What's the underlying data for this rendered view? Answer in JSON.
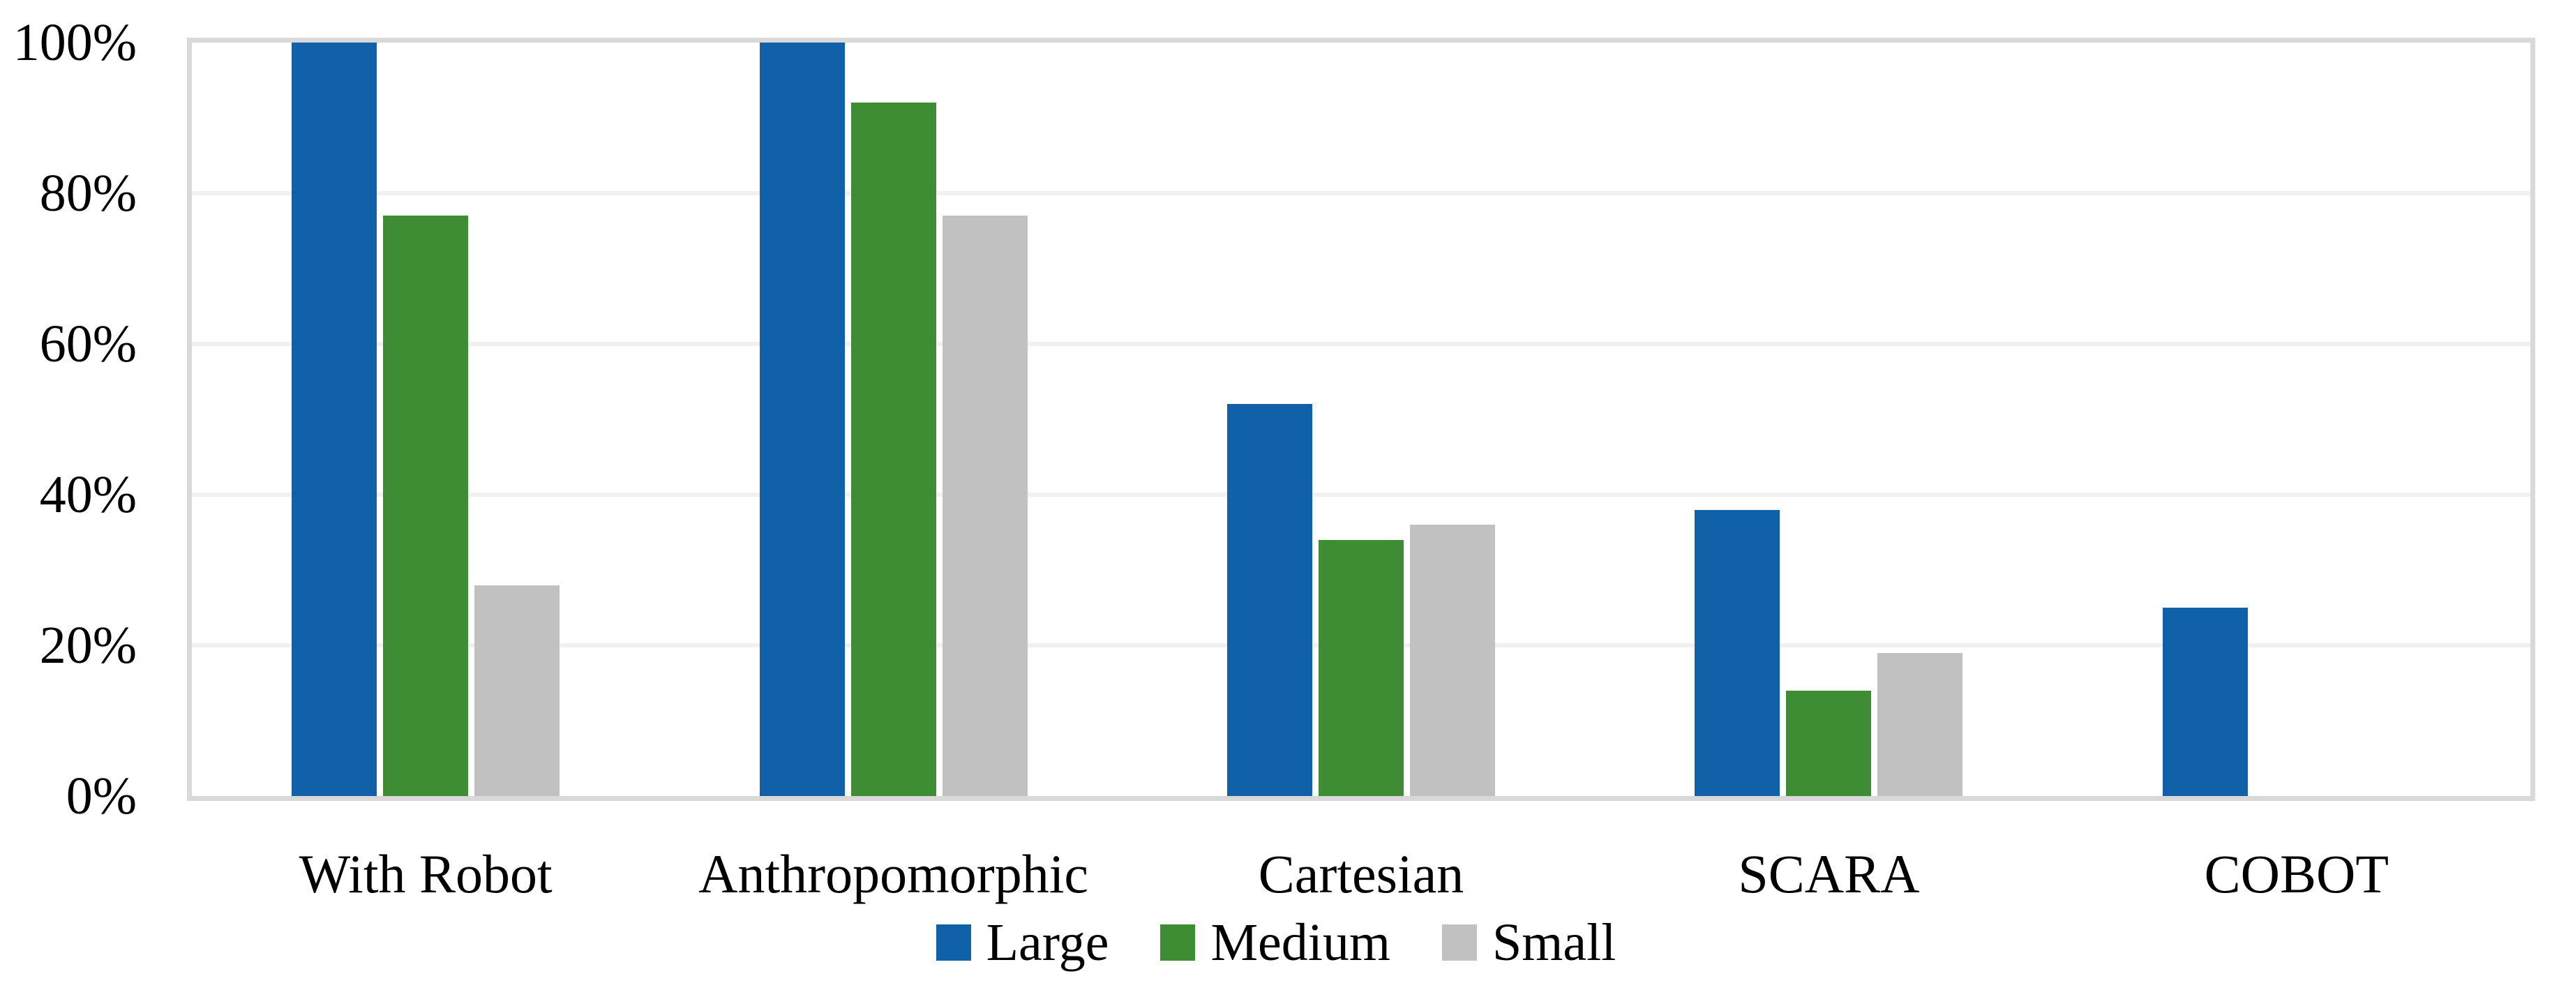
{
  "chart_data": {
    "type": "bar",
    "title": "",
    "xlabel": "",
    "ylabel": "",
    "categories": [
      "With Robot",
      "Anthropomorphic",
      "Cartesian",
      "SCARA",
      "COBOT"
    ],
    "series": [
      {
        "name": "Large",
        "color": "#1161a8",
        "values": [
          100,
          100,
          52,
          38,
          25
        ]
      },
      {
        "name": "Medium",
        "color": "#3e8c33",
        "values": [
          77,
          92,
          34,
          14,
          0
        ]
      },
      {
        "name": "Small",
        "color": "#c1c1c1",
        "values": [
          28,
          77,
          36,
          19,
          0
        ]
      }
    ],
    "ylim": [
      0,
      100
    ],
    "ytick_step": 20,
    "ytick_labels": [
      "0%",
      "20%",
      "40%",
      "60%",
      "80%",
      "100%"
    ],
    "grid": "horizontal",
    "gridline_color": "#f1f1f1",
    "plot_border_color": "#d9d9d9",
    "legend_position": "bottom",
    "legend_entries": [
      "Large",
      "Medium",
      "Small"
    ]
  }
}
